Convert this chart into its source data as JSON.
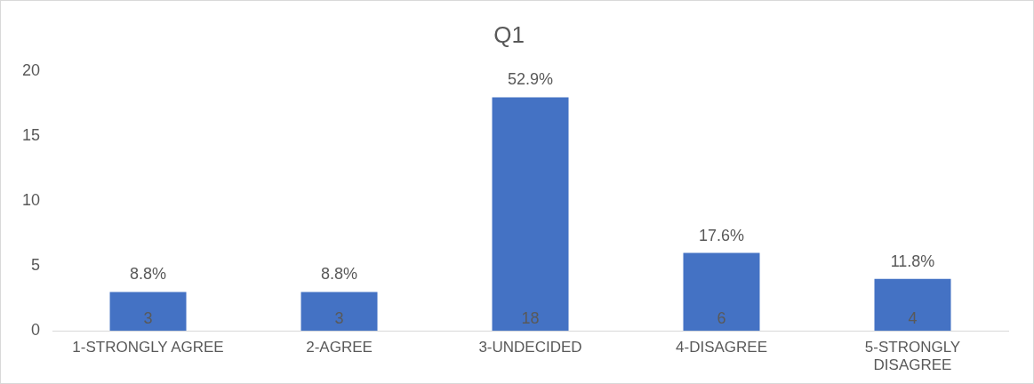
{
  "chart_data": {
    "type": "bar",
    "title": "Q1",
    "categories": [
      "1-STRONGLY AGREE",
      "2-AGREE",
      "3-UNDECIDED",
      "4-DISAGREE",
      "5-STRONGLY DISAGREE"
    ],
    "values": [
      3,
      3,
      18,
      6,
      4
    ],
    "color": "#4472c4",
    "ylim": [
      0,
      20
    ],
    "yticks": [
      0,
      5,
      10,
      15,
      20
    ],
    "grid": false,
    "legend": false,
    "data_labels": true,
    "annotations": [
      {
        "text": "8.8%",
        "x": "1-STRONGLY AGREE",
        "y": 3
      },
      {
        "text": "8.8%",
        "x": "2-AGREE",
        "y": 3
      },
      {
        "text": "52.9%",
        "x": "3-UNDECIDED",
        "y": 18
      },
      {
        "text": "17.6%",
        "x": "4-DISAGREE",
        "y": 6
      },
      {
        "text": "11.8%",
        "x": "5-STRONGLY DISAGREE",
        "y": 4
      }
    ]
  }
}
